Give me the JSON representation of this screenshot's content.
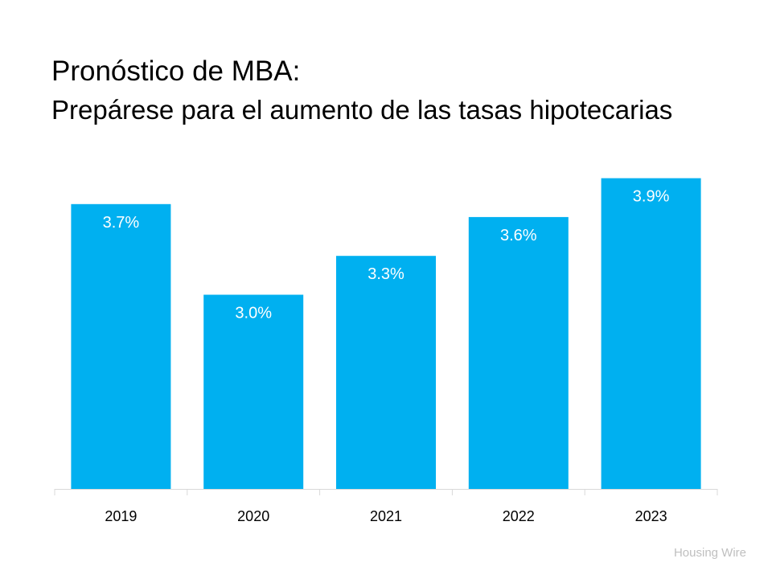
{
  "header": {
    "title": "Pronóstico de MBA:",
    "subtitle": "Prepárese para el aumento de las tasas hipotecarias"
  },
  "source": "Housing Wire",
  "chart_data": {
    "type": "bar",
    "categories": [
      "2019",
      "2020",
      "2021",
      "2022",
      "2023"
    ],
    "values": [
      3.7,
      3.0,
      3.3,
      3.6,
      3.9
    ],
    "data_labels": [
      "3.7%",
      "3.0%",
      "3.3%",
      "3.6%",
      "3.9%"
    ],
    "title": "",
    "xlabel": "",
    "ylabel": "",
    "ylim": [
      1.5,
      4.0
    ],
    "grid": false,
    "legend": "none",
    "bar_color": "#00B0F0",
    "label_color": "#FFFFFF"
  }
}
